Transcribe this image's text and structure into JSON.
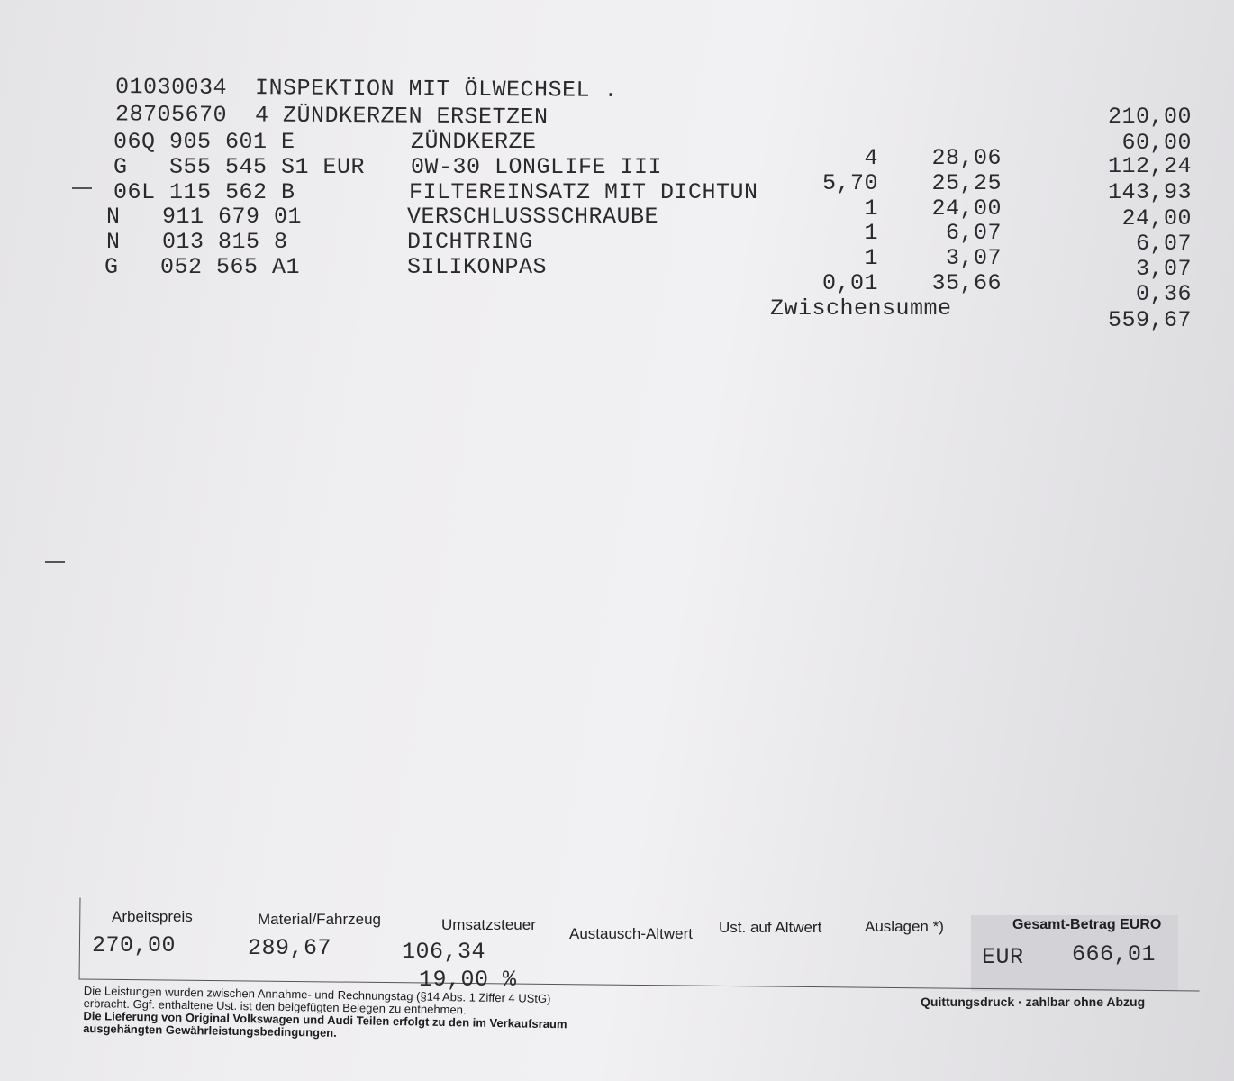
{
  "lines": [
    {
      "text": "01030034  INSPEKTION MIT ÖLWECHSEL ."
    },
    {
      "text": "28705670  4 ZÜNDKERZEN ERSETZEN"
    }
  ],
  "items": [
    {
      "part": "06Q 905 601 E",
      "desc": "ZÜNDKERZE",
      "qty": "4",
      "price": "28,06"
    },
    {
      "part": "G   S55 545 S1 EUR",
      "desc": "0W-30 LONGLIFE III",
      "qty": "5,70",
      "price": "25,25"
    },
    {
      "part": "06L 115 562 B",
      "desc": "FILTEREINSATZ MIT DICHTUN",
      "qty": "1",
      "price": "24,00"
    },
    {
      "part": "N   911 679 01",
      "desc": "VERSCHLUSSSCHRAUBE",
      "qty": "1",
      "price": "6,07"
    },
    {
      "part": "N   013 815 8",
      "desc": "DICHTRING",
      "qty": "1",
      "price": "3,07"
    },
    {
      "part": "G   052 565 A1",
      "desc": "SILIKONPAS",
      "qty": "0,01",
      "price": "35,66"
    }
  ],
  "amounts": [
    "210,00",
    "60,00",
    "112,24",
    "143,93",
    "24,00",
    "6,07",
    "3,07",
    "0,36",
    "559,67"
  ],
  "subtotal_label": "Zwischensumme",
  "summary": {
    "headers": [
      "Arbeitspreis",
      "Material/Fahrzeug",
      "Umsatzsteuer",
      "Austausch-Altwert",
      "Ust. auf Altwert",
      "Auslagen *)",
      "Gesamt-Betrag EURO"
    ],
    "arbeitspreis": "270,00",
    "material": "289,67",
    "ust": "106,34",
    "ust_rate": "19,00 %",
    "currency": "EUR",
    "total": "666,01",
    "receipt_note": "Quittungsdruck · zahlbar ohne Abzug"
  },
  "footer": {
    "line1": "Die Leistungen wurden zwischen Annahme- und Rechnungstag (§14 Abs. 1 Ziffer 4 UStG)",
    "line2": "erbracht. Ggf. enthaltene Ust. ist den beigefügten Belegen zu entnehmen.",
    "line3": "Die Lieferung von Original Volkswagen und Audi Teilen erfolgt zu den im Verkaufsraum",
    "line4": "ausgehängten Gewährleistungsbedingungen."
  }
}
